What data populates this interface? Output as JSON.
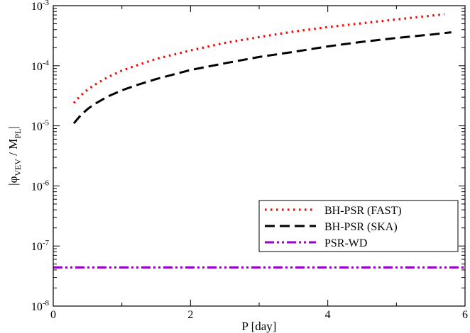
{
  "chart_data": {
    "type": "line",
    "title": "",
    "xlabel": "P [day]",
    "ylabel_main": "|φ",
    "ylabel_sub1": "VEV",
    "ylabel_mid": " / M",
    "ylabel_sub2": "PL",
    "ylabel_end": "|",
    "xlim": [
      0,
      6
    ],
    "ylim": [
      1e-08,
      0.001
    ],
    "yscale": "log",
    "x_ticks": [
      0,
      2,
      4,
      6
    ],
    "x_tick_labels": [
      "0",
      "2",
      "4",
      "6"
    ],
    "y_tick_exponents": [
      -8,
      -7,
      -6,
      -5,
      -4,
      -3
    ],
    "y_tick_base": "10",
    "legend_position": "lower-right",
    "series": [
      {
        "name": "BH-PSR (FAST)",
        "color": "#ff0000",
        "dash": "dotted",
        "x": [
          0.3,
          0.4,
          0.5,
          0.6,
          0.8,
          1.0,
          1.2,
          1.5,
          2.0,
          2.5,
          3.0,
          3.5,
          4.0,
          4.5,
          5.0,
          5.5,
          5.7
        ],
        "y": [
          2.4e-05,
          3.2e-05,
          4e-05,
          4.8e-05,
          6.5e-05,
          8.3e-05,
          0.0001,
          0.00013,
          0.00018,
          0.00024,
          0.0003,
          0.00037,
          0.00044,
          0.00051,
          0.00059,
          0.00068,
          0.00072
        ]
      },
      {
        "name": "BH-PSR (SKA)",
        "color": "#000000",
        "dash": "dashed",
        "x": [
          0.3,
          0.4,
          0.5,
          0.6,
          0.8,
          1.0,
          1.2,
          1.5,
          2.0,
          2.5,
          3.0,
          3.5,
          4.0,
          4.5,
          5.0,
          5.5,
          5.8
        ],
        "y": [
          1.1e-05,
          1.5e-05,
          1.9e-05,
          2.3e-05,
          3.1e-05,
          3.9e-05,
          4.7e-05,
          6e-05,
          8.5e-05,
          0.00011,
          0.00014,
          0.00017,
          0.00021,
          0.00025,
          0.00029,
          0.00033,
          0.00036
        ]
      },
      {
        "name": "PSR-WD",
        "color": "#9900cc",
        "dash": "dashdotdot",
        "x": [
          0,
          6
        ],
        "y": [
          4.4e-08,
          4.4e-08
        ]
      }
    ]
  }
}
